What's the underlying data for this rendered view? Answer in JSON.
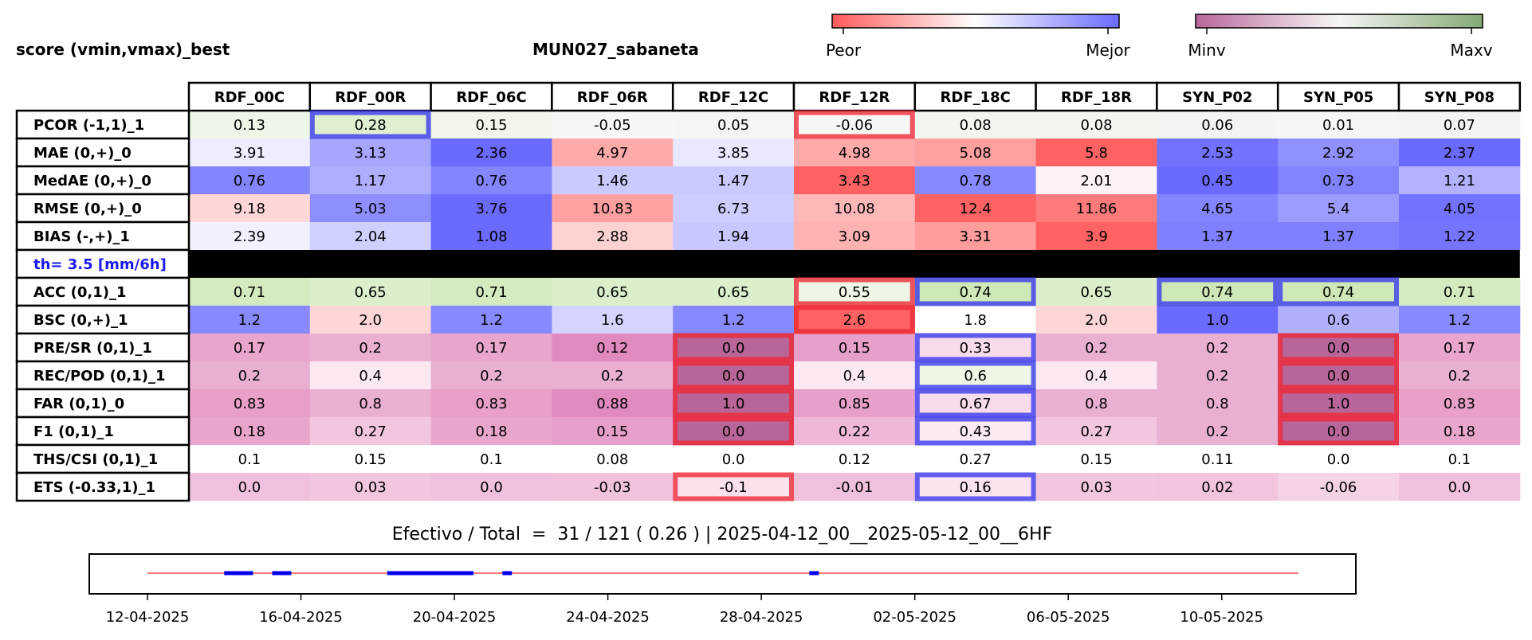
{
  "header": {
    "left_title": "score (vmin,vmax)_best",
    "center_title": "MUN027_sabaneta"
  },
  "colorbars": {
    "score": {
      "low_label": "Peor",
      "high_label": "Mejor",
      "colors": [
        "#ff5a5a",
        "#ffffff",
        "#6a6aff"
      ]
    },
    "value": {
      "low_label": "Minv",
      "high_label": "Maxv",
      "colors": [
        "#b8669a",
        "#f7f7f7",
        "#84a874"
      ]
    }
  },
  "chart_data": {
    "type": "table",
    "columns": [
      "RDF_00C",
      "RDF_00R",
      "RDF_06C",
      "RDF_06R",
      "RDF_12C",
      "RDF_12R",
      "RDF_18C",
      "RDF_18R",
      "SYN_P02",
      "SYN_P05",
      "SYN_P08"
    ],
    "rows": [
      {
        "label": "PCOR (-1,1)_1",
        "values": [
          "0.13",
          "0.28",
          "0.15",
          "-0.05",
          "0.05",
          "-0.06",
          "0.08",
          "0.08",
          "0.06",
          "0.01",
          "0.07"
        ],
        "fills": [
          "#eef6e8",
          "#dfefd0",
          "#f0f7ea",
          "#f7f7f7",
          "#f4f7f1",
          "#f7f7f7",
          "#f2f6ee",
          "#f2f6ee",
          "#f3f6f0",
          "#f6f6f5",
          "#f3f6f0"
        ]
      },
      {
        "label": "MAE (0,+)_0",
        "values": [
          "3.91",
          "3.13",
          "2.36",
          "4.97",
          "3.85",
          "4.98",
          "5.08",
          "5.8",
          "2.53",
          "2.92",
          "2.37"
        ],
        "fills": [
          "#ededff",
          "#a6a6ff",
          "#6a6aff",
          "#ffaaaa",
          "#e8e8ff",
          "#ffaaaa",
          "#ffa0a0",
          "#ff6262",
          "#7272ff",
          "#9090ff",
          "#6a6aff"
        ]
      },
      {
        "label": "MedAE (0,+)_0",
        "values": [
          "0.76",
          "1.17",
          "0.76",
          "1.46",
          "1.47",
          "3.43",
          "0.78",
          "2.01",
          "0.45",
          "0.73",
          "1.21"
        ],
        "fills": [
          "#8484ff",
          "#aeaeff",
          "#8484ff",
          "#cacaff",
          "#cacaff",
          "#ff6262",
          "#8888ff",
          "#fff2f2",
          "#6a6aff",
          "#8282ff",
          "#b2b2ff"
        ]
      },
      {
        "label": "RMSE (0,+)_0",
        "values": [
          "9.18",
          "5.03",
          "3.76",
          "10.83",
          "6.73",
          "10.08",
          "12.4",
          "11.86",
          "4.65",
          "5.4",
          "4.05"
        ],
        "fills": [
          "#ffd7d7",
          "#8e8eff",
          "#6a6aff",
          "#ffa0a0",
          "#cdcdff",
          "#ffb8b8",
          "#ff6262",
          "#ff7a7a",
          "#8484ff",
          "#9c9cff",
          "#7272ff"
        ]
      },
      {
        "label": "BIAS (-,+)_1",
        "values": [
          "2.39",
          "2.04",
          "1.08",
          "2.88",
          "1.94",
          "3.09",
          "3.31",
          "3.9",
          "1.37",
          "1.37",
          "1.22"
        ],
        "fills": [
          "#f0f0ff",
          "#d0d0ff",
          "#6a6aff",
          "#ffd2d2",
          "#c8c8ff",
          "#ffb2b2",
          "#ff9c9c",
          "#ff6262",
          "#8080ff",
          "#8080ff",
          "#7474ff"
        ]
      },
      {
        "label": "th= 3.5 [mm/6h]",
        "separator": true,
        "values": [],
        "fills": []
      },
      {
        "label": "ACC (0,1)_1",
        "values": [
          "0.71",
          "0.65",
          "0.71",
          "0.65",
          "0.65",
          "0.55",
          "0.74",
          "0.65",
          "0.74",
          "0.74",
          "0.71"
        ],
        "fills": [
          "#d4ebc0",
          "#dcefcc",
          "#d4ebc0",
          "#dcefcc",
          "#dcefcc",
          "#eef6e6",
          "#cfe8b8",
          "#dcefcc",
          "#cfe8b8",
          "#cfe8b8",
          "#d4ebc0"
        ]
      },
      {
        "label": "BSC (0,+)_1",
        "values": [
          "1.2",
          "2.0",
          "1.2",
          "1.6",
          "1.2",
          "2.6",
          "1.8",
          "2.0",
          "1.0",
          "0.6",
          "1.2"
        ],
        "fills": [
          "#8888ff",
          "#ffd6d6",
          "#8888ff",
          "#d4d4ff",
          "#8888ff",
          "#ff6262",
          "#ffffff",
          "#ffd6d6",
          "#6a6aff",
          "#b0b0ff",
          "#8888ff"
        ]
      },
      {
        "label": "PRE/SR (0,1)_1",
        "values": [
          "0.17",
          "0.2",
          "0.17",
          "0.12",
          "0.0",
          "0.15",
          "0.33",
          "0.2",
          "0.2",
          "0.0",
          "0.17"
        ],
        "fills": [
          "#e8a6cc",
          "#eab0d2",
          "#e8a6cc",
          "#e08ac0",
          "#b8669a",
          "#e6a0ca",
          "#f8dcec",
          "#eab0d2",
          "#eab0d2",
          "#b8669a",
          "#e8a6cc"
        ]
      },
      {
        "label": "REC/POD (0,1)_1",
        "values": [
          "0.2",
          "0.4",
          "0.2",
          "0.2",
          "0.0",
          "0.4",
          "0.6",
          "0.4",
          "0.2",
          "0.0",
          "0.2"
        ],
        "fills": [
          "#eab0d2",
          "#fbe8f2",
          "#eab0d2",
          "#eab0d2",
          "#b8669a",
          "#fbe8f2",
          "#eef6e4",
          "#fbe8f2",
          "#eab0d2",
          "#b8669a",
          "#eab0d2"
        ]
      },
      {
        "label": "FAR (0,1)_0",
        "values": [
          "0.83",
          "0.8",
          "0.83",
          "0.88",
          "1.0",
          "0.85",
          "0.67",
          "0.8",
          "0.8",
          "1.0",
          "0.83"
        ],
        "fills": [
          "#e8a0c8",
          "#eab0d2",
          "#e8a0c8",
          "#e08ac0",
          "#b8669a",
          "#e6a0ca",
          "#f8dcec",
          "#eab0d2",
          "#eab0d2",
          "#b8669a",
          "#e8a0c8"
        ]
      },
      {
        "label": "F1 (0,1)_1",
        "values": [
          "0.18",
          "0.27",
          "0.18",
          "0.15",
          "0.0",
          "0.22",
          "0.43",
          "0.27",
          "0.2",
          "0.0",
          "0.18"
        ],
        "fills": [
          "#e8a6cc",
          "#f2c6de",
          "#e8a6cc",
          "#e6a0ca",
          "#b8669a",
          "#eeb8d6",
          "#fbeaf3",
          "#f2c6de",
          "#eab0d2",
          "#b8669a",
          "#e8a6cc"
        ]
      },
      {
        "label": "THS/CSI (0,1)_1",
        "values": [
          "0.1",
          "0.15",
          "0.1",
          "0.08",
          "0.0",
          "0.12",
          "0.27",
          "0.15",
          "0.11",
          "0.0",
          "0.1"
        ],
        "fills": [
          "#ffffff",
          "#ffffff",
          "#ffffff",
          "#ffffff",
          "#ffffff",
          "#ffffff",
          "#ffffff",
          "#ffffff",
          "#ffffff",
          "#ffffff",
          "#ffffff"
        ]
      },
      {
        "label": "ETS (-0.33,1)_1",
        "values": [
          "0.0",
          "0.03",
          "0.0",
          "-0.03",
          "-0.1",
          "-0.01",
          "0.16",
          "0.03",
          "0.02",
          "-0.06",
          "0.0"
        ],
        "fills": [
          "#f0c0dc",
          "#f2c6de",
          "#f0c0dc",
          "#f0c2dc",
          "#fbe0ee",
          "#f0c0dc",
          "#fbe4f0",
          "#f2c6de",
          "#f2c4de",
          "#f6d2e6",
          "#f0c0dc"
        ]
      }
    ],
    "highlights": [
      {
        "row": 0,
        "col": 1,
        "kind": "best"
      },
      {
        "row": 0,
        "col": 5,
        "kind": "worst"
      },
      {
        "row": 6,
        "col": 5,
        "kind": "worst"
      },
      {
        "row": 6,
        "col": 6,
        "kind": "best"
      },
      {
        "row": 6,
        "col": 8,
        "kind": "best"
      },
      {
        "row": 6,
        "col": 9,
        "kind": "best"
      },
      {
        "row": 7,
        "col": 5,
        "kind": "worst"
      },
      {
        "row": 8,
        "col": 4,
        "kind": "worst"
      },
      {
        "row": 8,
        "col": 6,
        "kind": "best"
      },
      {
        "row": 8,
        "col": 9,
        "kind": "worst"
      },
      {
        "row": 9,
        "col": 4,
        "kind": "worst"
      },
      {
        "row": 9,
        "col": 6,
        "kind": "best"
      },
      {
        "row": 9,
        "col": 9,
        "kind": "worst"
      },
      {
        "row": 10,
        "col": 4,
        "kind": "worst"
      },
      {
        "row": 10,
        "col": 6,
        "kind": "best"
      },
      {
        "row": 10,
        "col": 9,
        "kind": "worst"
      },
      {
        "row": 11,
        "col": 4,
        "kind": "worst"
      },
      {
        "row": 11,
        "col": 6,
        "kind": "best"
      },
      {
        "row": 11,
        "col": 9,
        "kind": "worst"
      },
      {
        "row": 13,
        "col": 4,
        "kind": "worst"
      },
      {
        "row": 13,
        "col": 6,
        "kind": "best"
      }
    ],
    "highlight_colors": {
      "best": "#3a3aee",
      "worst": "#ee2a36"
    },
    "separator_label_color": "#1a1aee",
    "timeline": {
      "caption": "Efectivo / Total  =  31 / 121 ( 0.26 ) | 2025-04-12_00__2025-05-12_00__6HF",
      "xlim": [
        "2025-04-12",
        "2025-05-12"
      ],
      "tick_labels": [
        "12-04-2025",
        "16-04-2025",
        "20-04-2025",
        "24-04-2025",
        "28-04-2025",
        "02-05-2025",
        "06-05-2025",
        "10-05-2025"
      ],
      "tick_dates": [
        "2025-04-12",
        "2025-04-16",
        "2025-04-20",
        "2025-04-24",
        "2025-04-28",
        "2025-05-02",
        "2025-05-06",
        "2025-05-10"
      ],
      "line_color": "#ff4d4d",
      "segment_color": "#0000ee",
      "effective_segments": [
        [
          "2025-04-14T00:00",
          "2025-04-14T18:00"
        ],
        [
          "2025-04-15T06:00",
          "2025-04-15T18:00"
        ],
        [
          "2025-04-18T06:00",
          "2025-04-20T12:00"
        ],
        [
          "2025-04-21T06:00",
          "2025-04-21T12:00"
        ],
        [
          "2025-04-29T06:00",
          "2025-04-29T12:00"
        ]
      ]
    }
  }
}
